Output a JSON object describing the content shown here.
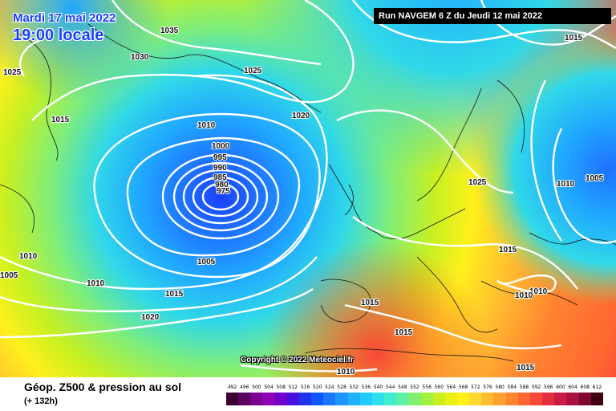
{
  "header": {
    "date": "Mardi 17 mai 2022",
    "time": "19:00 locale",
    "run": "Run NAVGEM 6 Z du Jeudi 12 mai 2022"
  },
  "footer": {
    "title": "Géop. Z500 & pression au sol",
    "lead": "(+ 132h)",
    "copyright": "Copyright © 2022 Meteociel.fr"
  },
  "isobar_labels": [
    "1035",
    "1030",
    "1025",
    "1025",
    "1015",
    "1010",
    "1020",
    "1000",
    "995",
    "990",
    "985",
    "980",
    "975",
    "1005",
    "1010",
    "1010",
    "1005",
    "1015",
    "1020",
    "1015",
    "1015",
    "1025",
    "1010",
    "1005",
    "1015",
    "1010",
    "1010",
    "1015",
    "1010",
    "1015"
  ],
  "legend": {
    "values": [
      "492",
      "496",
      "500",
      "504",
      "508",
      "512",
      "516",
      "520",
      "524",
      "528",
      "532",
      "536",
      "540",
      "544",
      "548",
      "552",
      "556",
      "560",
      "564",
      "568",
      "572",
      "576",
      "580",
      "584",
      "588",
      "592",
      "596",
      "600",
      "604",
      "608",
      "612"
    ],
    "colors": [
      "#3a0033",
      "#5a0060",
      "#7a0090",
      "#9000b4",
      "#7000cc",
      "#4a10dd",
      "#2233ee",
      "#1055ff",
      "#1a78ff",
      "#1e96ff",
      "#1fb2ff",
      "#20ccff",
      "#2ee0ee",
      "#40ecd0",
      "#5ef0a4",
      "#80f070",
      "#a4f040",
      "#c8f020",
      "#eaf016",
      "#fff01c",
      "#ffd830",
      "#ffbe30",
      "#ffa030",
      "#ff8430",
      "#ff6630",
      "#f84838",
      "#e42c40",
      "#c81c44",
      "#a81040",
      "#800830",
      "#400010"
    ]
  }
}
